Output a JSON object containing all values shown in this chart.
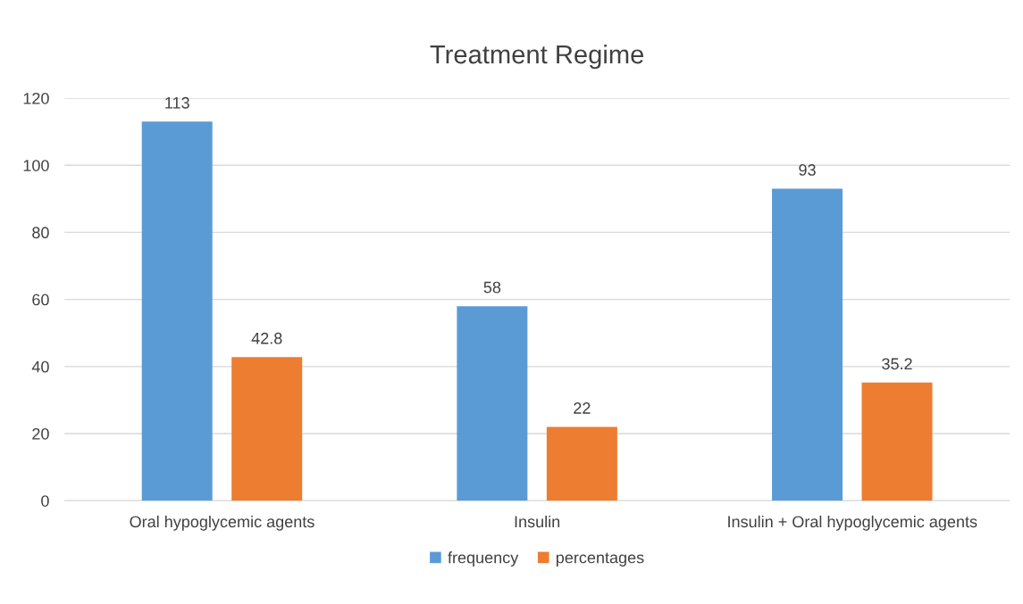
{
  "chart_data": {
    "type": "bar",
    "title": "Treatment Regime",
    "categories": [
      "Oral hypoglycemic agents",
      "Insulin",
      "Insulin + Oral hypoglycemic agents"
    ],
    "series": [
      {
        "name": "frequency",
        "color": "#5b9bd5",
        "values": [
          113,
          58,
          93
        ]
      },
      {
        "name": "percentages",
        "color": "#ed7d31",
        "values": [
          42.8,
          22,
          35.2
        ]
      }
    ],
    "ylim": [
      0,
      120
    ],
    "yticks": [
      0,
      20,
      40,
      60,
      80,
      100,
      120
    ],
    "grid": "y",
    "legend": "bottom",
    "data_labels": true
  }
}
